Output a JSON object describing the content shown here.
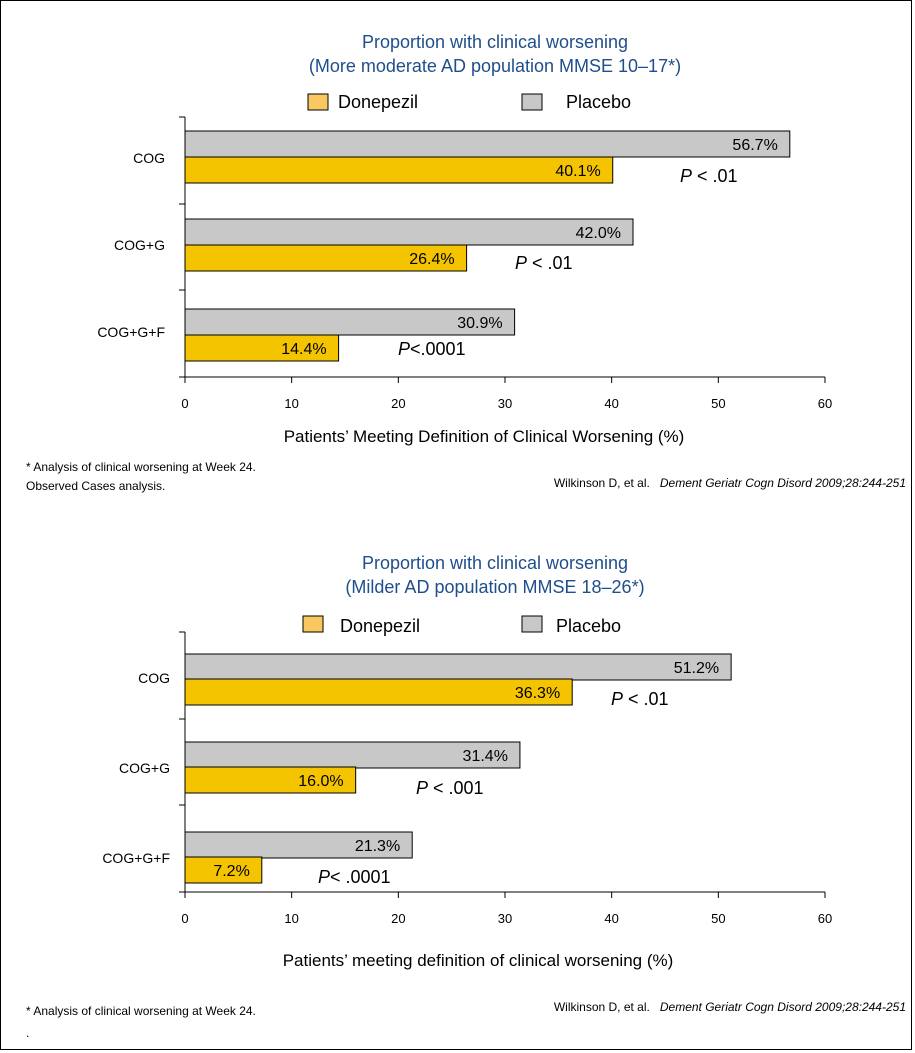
{
  "chart_data": [
    {
      "type": "bar",
      "orientation": "horizontal",
      "title_line1": "Proportion with clinical worsening",
      "title_line2": "(More moderate AD population MMSE 10–17*)",
      "categories": [
        "COG",
        "COG+G",
        "COG+G+F"
      ],
      "series": [
        {
          "name": "Placebo",
          "color": "#c8c8c8",
          "values": [
            56.7,
            42.0,
            30.9
          ],
          "labels": [
            "56.7%",
            "42.0%",
            "30.9%"
          ]
        },
        {
          "name": "Donepezil",
          "color": "#f5c400",
          "values": [
            40.1,
            26.4,
            14.4
          ],
          "labels": [
            "40.1%",
            "26.4%",
            "14.4%"
          ]
        }
      ],
      "p_values": [
        {
          "p": "P",
          "text": " < .01"
        },
        {
          "p": "P",
          "text": " < .01"
        },
        {
          "p": "P",
          "text": "<.0001"
        }
      ],
      "xlim": [
        0,
        60
      ],
      "xticks": [
        "0",
        "10",
        "20",
        "30",
        "40",
        "50",
        "60"
      ],
      "xlabel": "Patients’ Meeting Definition of Clinical Worsening (%)",
      "legend": {
        "donepezil": "Donepezil",
        "placebo": "Placebo"
      },
      "footnote_line1": "* Analysis of clinical worsening at Week 24.",
      "footnote_line2": " Observed Cases analysis.",
      "citation_author": "Wilkinson D, et al.",
      "citation_journal": "Dement Geriatr Cogn Disord 2009;28:244-251"
    },
    {
      "type": "bar",
      "orientation": "horizontal",
      "title_line1": "Proportion with clinical worsening",
      "title_line2": "(Milder AD population MMSE 18–26*)",
      "categories": [
        "COG",
        "COG+G",
        "COG+G+F"
      ],
      "series": [
        {
          "name": "Placebo",
          "color": "#c8c8c8",
          "values": [
            51.2,
            31.4,
            21.3
          ],
          "labels": [
            "51.2%",
            "31.4%",
            "21.3%"
          ]
        },
        {
          "name": "Donepezil",
          "color": "#f5c400",
          "values": [
            36.3,
            16.0,
            7.2
          ],
          "labels": [
            "36.3%",
            "16.0%",
            "7.2%"
          ]
        }
      ],
      "p_values": [
        {
          "p": "P",
          "text": " < .01"
        },
        {
          "p": "P",
          "text": " < .001"
        },
        {
          "p": "P",
          "text": "< .0001"
        }
      ],
      "xlim": [
        0,
        60
      ],
      "xticks": [
        "0",
        "10",
        "20",
        "30",
        "40",
        "50",
        "60"
      ],
      "xlabel": "Patients’ meeting definition of clinical worsening (%)",
      "legend": {
        "donepezil": "Donepezil",
        "placebo": "Placebo"
      },
      "footnote_line1": "* Analysis of clinical worsening at Week 24.",
      "footnote_line2": ".",
      "citation_author": "Wilkinson D, et al.",
      "citation_journal": "Dement Geriatr Cogn Disord 2009;28:244-251"
    }
  ]
}
